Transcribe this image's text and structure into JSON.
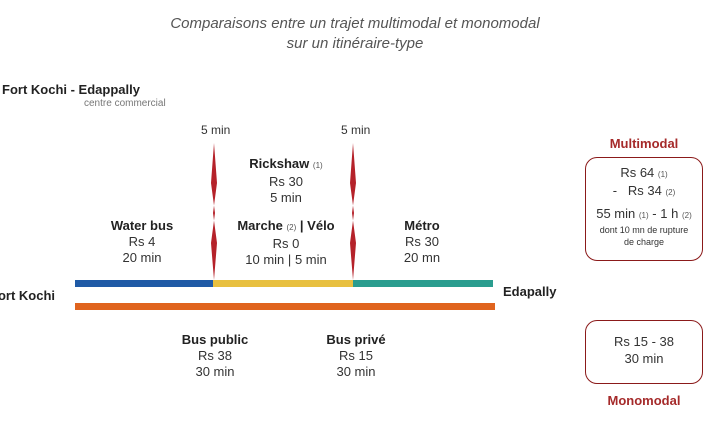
{
  "title": {
    "line1": "Comparaisons entre un trajet multimodal et monomodal",
    "line2": "sur un itinéraire-type"
  },
  "route": {
    "name": "Fort Kochi - Edappally",
    "sub": "centre commercial"
  },
  "transfer_times": [
    "5 min",
    "5 min"
  ],
  "multimodal_segments": [
    {
      "mode": "Water bus",
      "cost": "Rs 4",
      "time": "20 min"
    },
    {
      "mode": "Marche",
      "mode_note": "(2)",
      "sep": "|",
      "mode2": "Vélo",
      "cost": "Rs 0",
      "time": "10 min",
      "time_sep": "|",
      "time2": "5 min",
      "alt_mode": "Rickshaw",
      "alt_note": "(1)",
      "alt_cost": "Rs 30",
      "alt_time": "5 min"
    },
    {
      "mode": "Métro",
      "cost": "Rs 30",
      "time": "20 mn"
    }
  ],
  "endpoints": {
    "start": "Fort Kochi",
    "end": "Edapally"
  },
  "monomodal_segments": [
    {
      "mode": "Bus public",
      "cost": "Rs 38",
      "time": "30 min"
    },
    {
      "mode": "Bus privé",
      "cost": "Rs 15",
      "time": "30 min"
    }
  ],
  "multimodal_summary": {
    "label": "Multimodal",
    "cost1": "Rs 64",
    "cost1_note": "(1)",
    "dash": "-",
    "cost2": "Rs 34",
    "cost2_note": "(2)",
    "time1": "55 min",
    "time1_note": "(1)",
    "time_sep": "-",
    "time2": "1 h",
    "time2_note": "(2)",
    "note_line1": "dont 10 mn de rupture",
    "note_line2": "de charge"
  },
  "monomodal_summary": {
    "label": "Monomodal",
    "cost": "Rs 15 - 38",
    "time": "30 min"
  },
  "colors": {
    "water_bus": "#1f5aa6",
    "walk_bike": "#e8c040",
    "metro": "#2a9d8f",
    "bus": "#e0641e",
    "transfer": "#b5222a",
    "box_border": "#8b1a1a",
    "box_title": "#a52a2a"
  }
}
